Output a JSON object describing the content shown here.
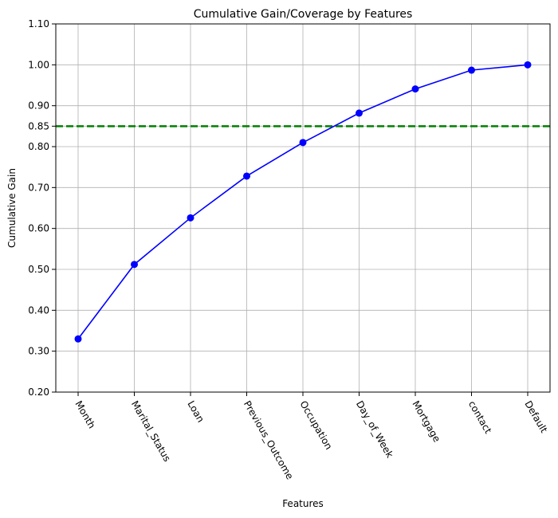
{
  "chart_data": {
    "type": "line",
    "title": "Cumulative Gain/Coverage by Features",
    "xlabel": "Features",
    "ylabel": "Cumulative Gain",
    "categories": [
      "Month",
      "Marital_Status",
      "Loan",
      "Previous_Outcome",
      "Occupation",
      "Day_of_Week",
      "Mortgage",
      "contact",
      "Default"
    ],
    "series": [
      {
        "values": [
          0.33,
          0.512,
          0.626,
          0.728,
          0.81,
          0.882,
          0.941,
          0.987,
          1.0
        ],
        "color": "#0000ff",
        "marker": "circle"
      }
    ],
    "threshold": {
      "value": 0.85,
      "color": "#008000",
      "style": "dashed"
    },
    "ylim": [
      0.2,
      1.1
    ],
    "yticks": [
      "0.20",
      "0.30",
      "0.40",
      "0.50",
      "0.60",
      "0.70",
      "0.80",
      "0.85",
      "0.90",
      "1.00",
      "1.10"
    ],
    "grid": true,
    "xtick_rotation": "-60"
  }
}
